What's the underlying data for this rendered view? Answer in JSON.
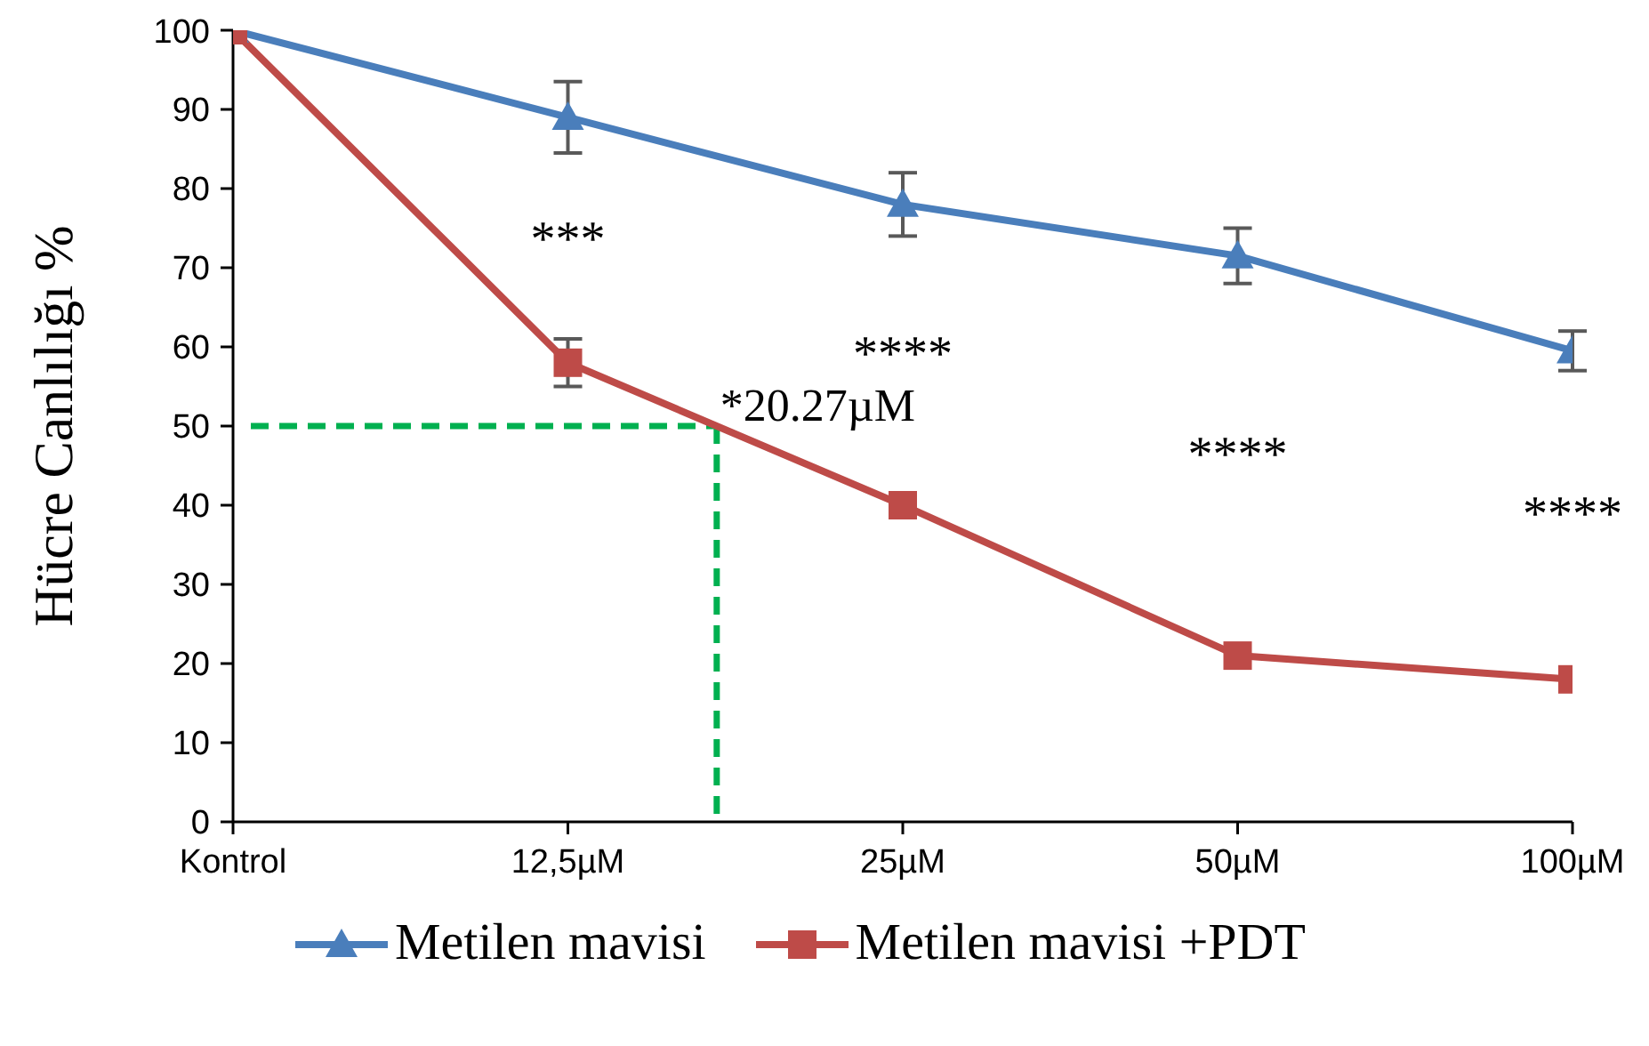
{
  "chart_data": {
    "type": "line",
    "ylabel": "Hücre Canlılığı %",
    "categories": [
      "Kontrol",
      "12,5µM",
      "25µM",
      "50µM",
      "100µM"
    ],
    "ylim": [
      0,
      100
    ],
    "yticks": [
      0,
      10,
      20,
      30,
      40,
      50,
      60,
      70,
      80,
      90,
      100
    ],
    "grid": false,
    "legend": "bottom",
    "series": [
      {
        "name": "Metilen mavisi",
        "color": "#4a7ebb",
        "values": [
          100,
          89,
          78,
          71.5,
          59.5
        ],
        "errors": [
          null,
          4.5,
          4,
          3.5,
          2.5
        ],
        "marker": "triangle"
      },
      {
        "name": "Metilen mavisi +PDT",
        "color": "#be4b48",
        "values": [
          100,
          58,
          40,
          21,
          18
        ],
        "errors": [
          null,
          3,
          null,
          null,
          null
        ],
        "marker": "square"
      }
    ],
    "ref_lines": [
      {
        "axis": "y",
        "value": 50,
        "label": "*20.27µM",
        "color": "#00b050",
        "line_style": "dashed"
      }
    ],
    "annotations": [
      "***",
      "****",
      "****",
      "****"
    ]
  }
}
